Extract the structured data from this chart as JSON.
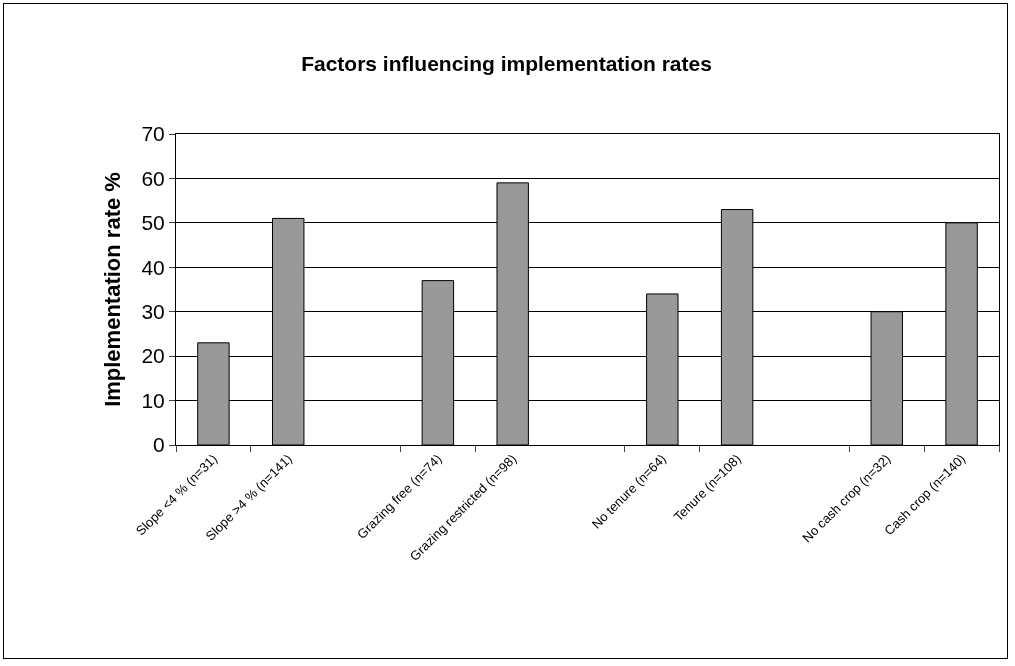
{
  "chart_data": {
    "type": "bar",
    "title": "Factors influencing implementation rates",
    "ylabel": "Implementation rate %",
    "categories": [
      "Slope <4 % (n=31)",
      "Slope >4 % (n=141)",
      null,
      "Grazing free (n=74)",
      "Grazing restricted (n=98)",
      null,
      "No tenure (n=64)",
      "Tenure (n=108)",
      null,
      "No cash crop (n=32)",
      "Cash crop (n=140)"
    ],
    "values": [
      23,
      51,
      null,
      37,
      59,
      null,
      34,
      53,
      null,
      30,
      50
    ],
    "color": "#999999",
    "ylim": [
      0,
      70
    ],
    "yticks": [
      0,
      10,
      20,
      30,
      40,
      50,
      60,
      70
    ],
    "grid": "y",
    "legend": false
  }
}
